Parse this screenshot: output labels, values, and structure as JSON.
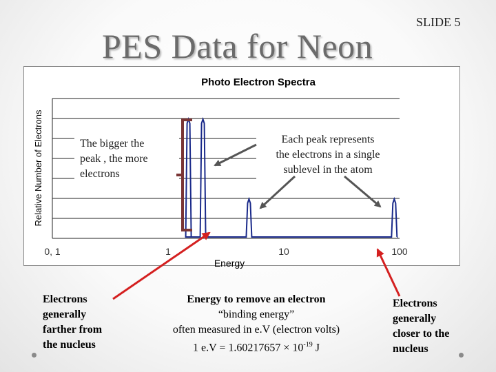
{
  "slide": {
    "title": "PES Data for Neon",
    "slide_number": "SLIDE 5"
  },
  "chart_data": {
    "type": "line",
    "title": "Photo Electron Spectra",
    "xlabel": "Energy",
    "ylabel": "Relative Number of Electrons",
    "x_scale": "log",
    "xlim": [
      0.1,
      100
    ],
    "x_ticks": [
      "0, 1",
      "1",
      "10",
      "100"
    ],
    "grid": true,
    "series": [
      {
        "peaks": [
          {
            "x": 1.5,
            "y": 1.0
          },
          {
            "x": 2.0,
            "y": 1.0
          },
          {
            "x": 5.0,
            "y": 0.33
          },
          {
            "x": 90,
            "y": 0.33
          }
        ]
      }
    ],
    "annotations": [
      {
        "text_lines": [
          "The bigger the",
          "peak , the more",
          "electrons"
        ]
      },
      {
        "text_lines": [
          "Each peak represents",
          "the electrons in a single",
          "sublevel in the atom"
        ]
      }
    ]
  },
  "notes": {
    "left_lines": [
      "Electrons",
      "generally",
      "farther from",
      "the nucleus"
    ],
    "center_line1": "Energy to remove an electron",
    "center_line2": "“binding energy”",
    "center_line3": "often measured in e.V  (electron volts)",
    "center_line4_prefix": "1 e.V = 1.60217657 × 10",
    "center_line4_exp": "-19",
    "center_line4_suffix": " J",
    "right_lines": [
      "Electrons",
      "generally",
      "closer to the",
      "nucleus"
    ]
  },
  "colors": {
    "spectrum": "#1a2a8a",
    "bracket": "#7a3535",
    "red_arrow": "#d42020",
    "gray_arrow": "#555555",
    "title": "#6b6b6b"
  }
}
